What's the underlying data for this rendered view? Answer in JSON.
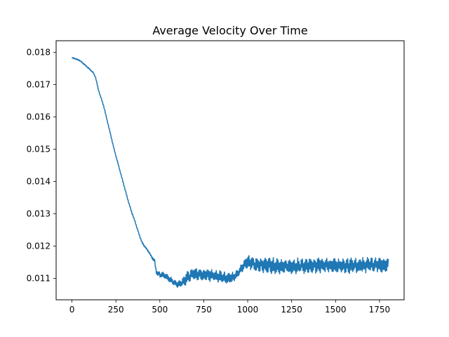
{
  "chart_data": {
    "type": "line",
    "title": "Average Velocity Over Time",
    "xlabel": "",
    "ylabel": "",
    "xlim": [
      -90,
      1890
    ],
    "ylim": [
      0.01034,
      0.01836
    ],
    "xticks": [
      0,
      250,
      500,
      750,
      1000,
      1250,
      1500,
      1750
    ],
    "yticks": [
      0.011,
      0.012,
      0.013,
      0.014,
      0.015,
      0.016,
      0.017,
      0.018
    ],
    "ytick_labels": [
      "0.011",
      "0.012",
      "0.013",
      "0.014",
      "0.015",
      "0.016",
      "0.017",
      "0.018"
    ],
    "grid": false,
    "legend": "none",
    "series": [
      {
        "color": "#1f77b4",
        "x_range": [
          0,
          1800
        ],
        "trend": [
          [
            0,
            0.01782
          ],
          [
            10,
            0.01782
          ],
          [
            20,
            0.0178
          ],
          [
            40,
            0.01776
          ],
          [
            60,
            0.01768
          ],
          [
            80,
            0.01758
          ],
          [
            100,
            0.01748
          ],
          [
            120,
            0.01738
          ],
          [
            135,
            0.01722
          ],
          [
            150,
            0.01685
          ],
          [
            165,
            0.0166
          ],
          [
            180,
            0.01635
          ],
          [
            200,
            0.0159
          ],
          [
            220,
            0.01545
          ],
          [
            240,
            0.015
          ],
          [
            260,
            0.0146
          ],
          [
            280,
            0.0142
          ],
          [
            300,
            0.0138
          ],
          [
            320,
            0.0134
          ],
          [
            340,
            0.01305
          ],
          [
            360,
            0.01275
          ],
          [
            380,
            0.0124
          ],
          [
            400,
            0.0121
          ],
          [
            420,
            0.01195
          ],
          [
            440,
            0.0118
          ],
          [
            455,
            0.01165
          ],
          [
            470,
            0.01155
          ],
          [
            480,
            0.0112
          ],
          [
            500,
            0.01112
          ],
          [
            525,
            0.0111
          ],
          [
            550,
            0.011
          ],
          [
            575,
            0.0109
          ],
          [
            600,
            0.0108
          ],
          [
            625,
            0.01085
          ],
          [
            650,
            0.011
          ],
          [
            675,
            0.0111
          ],
          [
            700,
            0.01115
          ],
          [
            750,
            0.01112
          ],
          [
            800,
            0.0111
          ],
          [
            850,
            0.01105
          ],
          [
            900,
            0.011
          ],
          [
            925,
            0.01105
          ],
          [
            950,
            0.0112
          ],
          [
            975,
            0.0114
          ],
          [
            1000,
            0.0115
          ],
          [
            1050,
            0.01142
          ],
          [
            1100,
            0.0114
          ],
          [
            1200,
            0.01138
          ],
          [
            1300,
            0.01138
          ],
          [
            1400,
            0.0114
          ],
          [
            1500,
            0.0114
          ],
          [
            1600,
            0.0114
          ],
          [
            1700,
            0.01142
          ],
          [
            1800,
            0.01142
          ]
        ],
        "noise_amplitude": [
          [
            0,
            2e-05
          ],
          [
            450,
            3e-05
          ],
          [
            480,
            8e-05
          ],
          [
            620,
            0.00012
          ],
          [
            650,
            0.0002
          ],
          [
            700,
            0.0002
          ],
          [
            900,
            0.00018
          ],
          [
            950,
            0.00012
          ],
          [
            1000,
            0.00024
          ],
          [
            1800,
            0.00024
          ]
        ]
      }
    ]
  }
}
